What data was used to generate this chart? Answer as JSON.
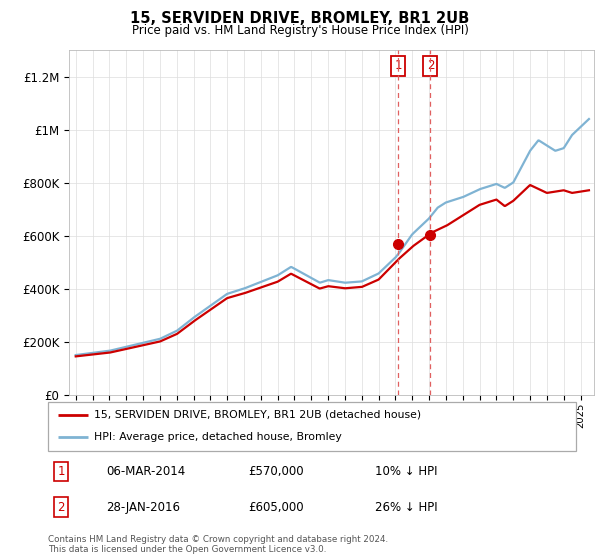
{
  "title": "15, SERVIDEN DRIVE, BROMLEY, BR1 2UB",
  "subtitle": "Price paid vs. HM Land Registry's House Price Index (HPI)",
  "ytick_values": [
    0,
    200000,
    400000,
    600000,
    800000,
    1000000,
    1200000
  ],
  "ylim": [
    0,
    1300000
  ],
  "sale1_date": "06-MAR-2014",
  "sale1_price": 570000,
  "sale2_date": "28-JAN-2016",
  "sale2_price": 605000,
  "sale1_hpi_diff": "10% ↓ HPI",
  "sale2_hpi_diff": "26% ↓ HPI",
  "legend_label_red": "15, SERVIDEN DRIVE, BROMLEY, BR1 2UB (detached house)",
  "legend_label_blue": "HPI: Average price, detached house, Bromley",
  "footer": "Contains HM Land Registry data © Crown copyright and database right 2024.\nThis data is licensed under the Open Government Licence v3.0.",
  "red_color": "#cc0000",
  "blue_color": "#7fb3d3",
  "vline_color": "#e06060",
  "background_color": "#ffffff",
  "grid_color": "#dddddd"
}
